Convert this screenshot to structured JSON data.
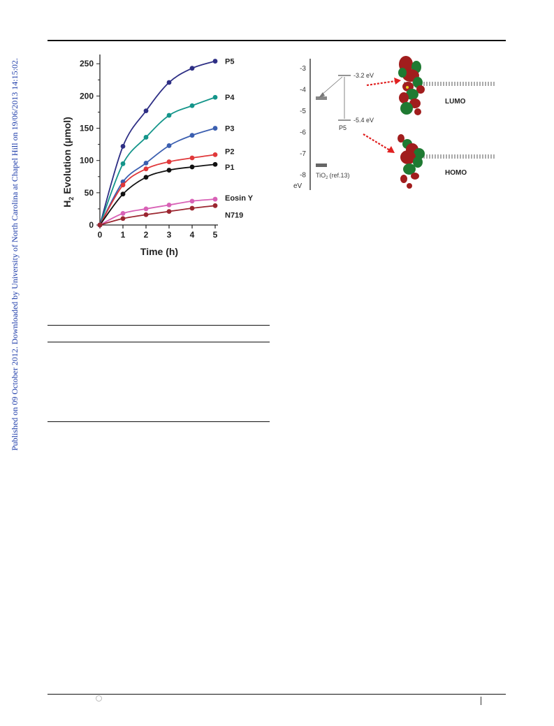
{
  "sidebar_text": "Published on 09 October 2012. Downloaded by University of North Carolina at Chapel Hill on 19/06/2013 14:15:02.",
  "chart_data": {
    "type": "line",
    "xlabel": "Time (h)",
    "ylabel_main": "H",
    "ylabel_sub": "2",
    "ylabel_rest": "Evolution (μmol)",
    "x": [
      0,
      1,
      2,
      3,
      4,
      5
    ],
    "xlim": [
      0,
      5
    ],
    "ylim": [
      0,
      260
    ],
    "x_ticks": [
      "0",
      "1",
      "2",
      "3",
      "4",
      "5"
    ],
    "y_ticks": [
      "0",
      "50",
      "100",
      "150",
      "200",
      "250"
    ],
    "y_tick_values": [
      0,
      50,
      100,
      150,
      200,
      250
    ],
    "legend_placement": "right end of curves",
    "series": [
      {
        "name": "P5",
        "color": "#2e2f85",
        "values": [
          0,
          122,
          177,
          221,
          243,
          254
        ]
      },
      {
        "name": "P4",
        "color": "#14958a",
        "values": [
          0,
          95,
          136,
          170,
          185,
          198
        ]
      },
      {
        "name": "P3",
        "color": "#3b5fb0",
        "values": [
          0,
          67,
          96,
          123,
          139,
          150
        ]
      },
      {
        "name": "P2",
        "color": "#e0383a",
        "values": [
          0,
          62,
          87,
          98,
          104,
          109
        ]
      },
      {
        "name": "P1",
        "color": "#111111",
        "values": [
          0,
          48,
          74,
          85,
          90,
          94
        ]
      },
      {
        "name": "Eosin Y",
        "color": "#d861b6",
        "values": [
          0,
          18,
          25,
          31,
          37,
          40
        ]
      },
      {
        "name": "N719",
        "color": "#9b2630",
        "values": [
          0,
          10,
          16,
          21,
          26,
          30
        ]
      }
    ]
  },
  "energy_diagram": {
    "axis_unit": "eV",
    "ticks": [
      "-3",
      "-4",
      "-5",
      "-6",
      "-7",
      "-8"
    ],
    "tick_values": [
      -3,
      -4,
      -5,
      -6,
      -7,
      -8
    ],
    "lumo_label": "-3.2 eV",
    "homo_label": "-5.4 eV",
    "lumo_value": -3.2,
    "homo_value": -5.4,
    "dye_label": "P5",
    "tio2_label": "TiO",
    "tio2_sub": "2",
    "tio2_ref": "(ref.13)",
    "orbital_top": "LUMO",
    "orbital_bottom": "HOMO",
    "colors": {
      "arrow": "#e02020",
      "level": "#555555",
      "lobe_red": "#a11d1d",
      "lobe_green": "#1f7a32"
    }
  }
}
